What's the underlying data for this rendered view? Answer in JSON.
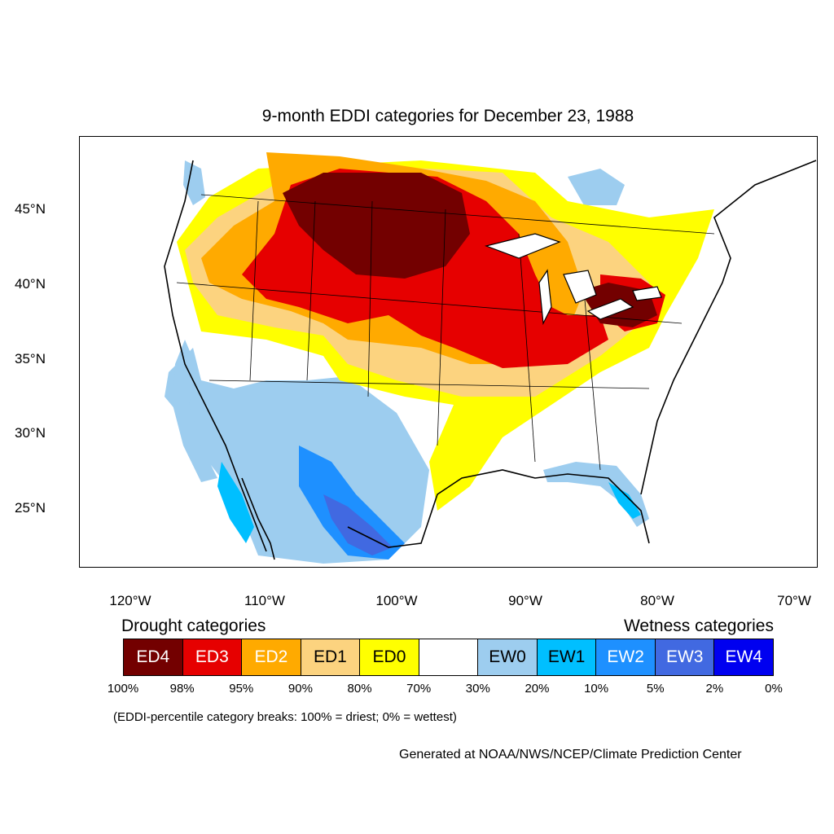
{
  "title": "9-month EDDI categories for December 23, 1988",
  "lat_labels": [
    "45°N",
    "40°N",
    "35°N",
    "30°N",
    "25°N"
  ],
  "lon_labels": [
    "120°W",
    "110°W",
    "100°W",
    "90°W",
    "80°W",
    "70°W"
  ],
  "legend": {
    "drought_heading": "Drought categories",
    "wetness_heading": "Wetness categories",
    "categories": [
      {
        "label": "ED4",
        "color": "#730000",
        "text_color": "#ffffff"
      },
      {
        "label": "ED3",
        "color": "#e60000",
        "text_color": "#ffffff"
      },
      {
        "label": "ED2",
        "color": "#ffaa00",
        "text_color": "#ffffff"
      },
      {
        "label": "ED1",
        "color": "#fcd37f",
        "text_color": "#000000"
      },
      {
        "label": "ED0",
        "color": "#ffff00",
        "text_color": "#000000"
      },
      {
        "label": "",
        "color": "#ffffff",
        "text_color": "#000000"
      },
      {
        "label": "EW0",
        "color": "#9dcdef",
        "text_color": "#000000"
      },
      {
        "label": "EW1",
        "color": "#00bfff",
        "text_color": "#000000"
      },
      {
        "label": "EW2",
        "color": "#1e90ff",
        "text_color": "#ffffff"
      },
      {
        "label": "EW3",
        "color": "#4169e1",
        "text_color": "#ffffff"
      },
      {
        "label": "EW4",
        "color": "#0000f0",
        "text_color": "#ffffff"
      }
    ],
    "breaks": [
      "100%",
      "98%",
      "95%",
      "90%",
      "80%",
      "70%",
      "30%",
      "20%",
      "10%",
      "5%",
      "2%",
      "0%"
    ]
  },
  "breaks_note": "(EDDI-percentile category breaks: 100% = driest; 0% = wettest)",
  "credit": "Generated at NOAA/NWS/NCEP/Climate Prediction Center"
}
